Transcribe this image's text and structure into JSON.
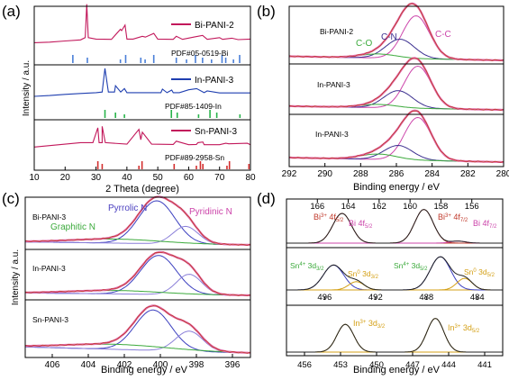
{
  "chart_data": [
    {
      "type": "line",
      "panel": "(a)",
      "xlabel": "2 Theta (degree)",
      "ylabel": "Intensity / a.u.",
      "xlim": [
        10,
        80
      ],
      "xticks": [
        10,
        20,
        30,
        40,
        50,
        60,
        70,
        80
      ],
      "series": [
        {
          "name": "Bi-PANI-2",
          "color": "#c2185b",
          "x": [
            10,
            15,
            20,
            25,
            26.5,
            27,
            27.5,
            30,
            35,
            37.9,
            38.3,
            39.4,
            40,
            42,
            45,
            46,
            48.7,
            50,
            55,
            56,
            58,
            62,
            64.5,
            66,
            70,
            71,
            74,
            76,
            80
          ],
          "y": [
            0.2,
            0.4,
            0.8,
            1.2,
            2.0,
            14.0,
            2.0,
            1.5,
            1.4,
            5.0,
            4.5,
            6.5,
            1.5,
            1.5,
            2.5,
            2.2,
            3.5,
            1.5,
            1.4,
            2.5,
            1.4,
            2.3,
            2.8,
            1.4,
            2.0,
            1.4,
            1.8,
            1.3,
            1.5
          ]
        },
        {
          "name": "In-PANI-3",
          "color": "#1f3fb0",
          "x": [
            10,
            15,
            20,
            25,
            30,
            32,
            32.9,
            34,
            36,
            36.3,
            38,
            39.2,
            40,
            45,
            51,
            51.5,
            53,
            54.5,
            55,
            57,
            60,
            62.6,
            65,
            66,
            70,
            75,
            80
          ],
          "y": [
            0.3,
            0.6,
            1.0,
            1.3,
            1.6,
            1.8,
            10.0,
            1.8,
            1.8,
            4.0,
            1.8,
            3.0,
            1.6,
            1.6,
            1.6,
            2.8,
            1.6,
            2.5,
            1.6,
            1.6,
            2.6,
            3.0,
            1.6,
            2.2,
            1.5,
            1.5,
            1.5
          ]
        },
        {
          "name": "Sn-PANI-3",
          "color": "#c2185b",
          "x": [
            10,
            15,
            20,
            25,
            29,
            30.6,
            31,
            32,
            32.0,
            33,
            40,
            43.9,
            44.5,
            45,
            48,
            55,
            56,
            60,
            62.5,
            63,
            64.6,
            65,
            70,
            72,
            73,
            79,
            80
          ],
          "y": [
            0.5,
            1.0,
            1.5,
            2.0,
            2.0,
            7.0,
            2.0,
            2.0,
            7.5,
            2.0,
            1.5,
            6.5,
            3.0,
            5.5,
            1.5,
            1.4,
            2.5,
            1.3,
            1.4,
            2.0,
            2.2,
            1.3,
            1.3,
            1.8,
            1.6,
            1.8,
            1.3
          ]
        }
      ],
      "references": [
        {
          "label": "PDF#05-0519-Bi",
          "color": "#4a7fd8",
          "positions": [
            22.5,
            27.2,
            37.9,
            39.6,
            44.5,
            45.9,
            48.7,
            56.0,
            59.3,
            62.2,
            64.5,
            67.4,
            70.8,
            72.0,
            74.5,
            76.5
          ]
        },
        {
          "label": "PDF#85-1409-In",
          "color": "#28b34a",
          "positions": [
            32.9,
            36.3,
            39.2,
            54.4,
            56.3,
            63.2,
            66.9,
            69.1,
            76.6
          ]
        },
        {
          "label": "PDF#89-2958-Sn",
          "color": "#d32f2f",
          "positions": [
            30.6,
            32.0,
            43.9,
            44.9,
            55.3,
            62.5,
            63.8,
            64.6,
            72.4,
            73.2,
            79.5
          ]
        }
      ]
    },
    {
      "type": "line",
      "panel": "(b)",
      "xlabel": "Binding energy / eV",
      "ylabel": "",
      "xlim": [
        292,
        280
      ],
      "xticks": [
        292,
        290,
        288,
        286,
        284,
        282,
        280
      ],
      "subpanels": [
        {
          "label": "Bi-PANI-2",
          "annotations": [
            {
              "text": "C-O",
              "color": "#3caa3c",
              "x": 286.9
            },
            {
              "text": "C-N",
              "color": "#3b2f8f",
              "x": 285.8
            },
            {
              "text": "C-C",
              "color": "#cc44aa",
              "x": 284.2
            }
          ],
          "peaks": [
            {
              "center": 284.9,
              "height": 0.85,
              "width": 0.75,
              "role": "C-C"
            },
            {
              "center": 285.8,
              "height": 0.38,
              "width": 0.8,
              "role": "C-N"
            },
            {
              "center": 287.0,
              "height": 0.08,
              "width": 1.0,
              "role": "C-O"
            }
          ]
        },
        {
          "label": "In-PANI-3",
          "peaks": [
            {
              "center": 284.8,
              "height": 0.9,
              "width": 0.75,
              "role": "C-C"
            },
            {
              "center": 285.9,
              "height": 0.37,
              "width": 0.8,
              "role": "C-N"
            },
            {
              "center": 287.0,
              "height": 0.07,
              "width": 1.0,
              "role": "C-O"
            }
          ]
        },
        {
          "label": "In-PANI-3",
          "peaks": [
            {
              "center": 284.8,
              "height": 0.95,
              "width": 0.75,
              "role": "C-C"
            },
            {
              "center": 285.9,
              "height": 0.32,
              "width": 0.8,
              "role": "C-N"
            },
            {
              "center": 287.0,
              "height": 0.12,
              "width": 1.0,
              "role": "C-O"
            }
          ]
        }
      ]
    },
    {
      "type": "line",
      "panel": "(c)",
      "xlabel": "Binding energy / eV",
      "ylabel": "Intensity / a.u.",
      "xlim": [
        407.5,
        395
      ],
      "xticks": [
        406,
        404,
        402,
        400,
        398,
        396
      ],
      "subpanels": [
        {
          "label": "Bi-PANI-3",
          "annotations": [
            {
              "text": "Pyrrolic N",
              "color": "#4a3fbf",
              "x": 401.2
            },
            {
              "text": "Pyridinic N",
              "color": "#cc44aa",
              "x": 397.8
            },
            {
              "text": "Graphitic N",
              "color": "#3caa3c",
              "x": 404.3
            }
          ],
          "peaks": [
            {
              "center": 400.2,
              "height": 0.85,
              "width": 1.0,
              "role": "pyrrolic"
            },
            {
              "center": 398.6,
              "height": 0.35,
              "width": 0.7,
              "role": "pyridinic"
            },
            {
              "center": 402.5,
              "height": 0.08,
              "width": 2.5,
              "role": "graphitic"
            }
          ]
        },
        {
          "label": "In-PANI-3",
          "peaks": [
            {
              "center": 400.1,
              "height": 0.8,
              "width": 1.0,
              "role": "pyrrolic"
            },
            {
              "center": 398.4,
              "height": 0.42,
              "width": 0.7,
              "role": "pyridinic"
            },
            {
              "center": 402.5,
              "height": 0.07,
              "width": 2.5,
              "role": "graphitic"
            }
          ]
        },
        {
          "label": "Sn-PANI-3",
          "peaks": [
            {
              "center": 400.4,
              "height": 0.8,
              "width": 1.0,
              "role": "pyrrolic"
            },
            {
              "center": 398.4,
              "height": 0.4,
              "width": 0.75,
              "role": "pyridinic"
            },
            {
              "center": 402.5,
              "height": 0.1,
              "width": 2.8,
              "role": "graphitic"
            }
          ]
        }
      ]
    },
    {
      "type": "line",
      "panel": "(d)",
      "xlabel": "Binding energy / eV",
      "subpanels": [
        {
          "xlim": [
            168,
            154
          ],
          "xticks": [
            166,
            164,
            162,
            160,
            158,
            156
          ],
          "xtick_position": "top",
          "annotations": [
            {
              "text": "Bi³⁺ 4f₅/₂",
              "color": "#c0392b",
              "x": 164.0
            },
            {
              "text": "Bi 4f₅/₂",
              "color": "#cc44aa",
              "x": 162.3
            },
            {
              "text": "Bi³⁺ 4f₇/₂",
              "color": "#c0392b",
              "x": 158.2
            },
            {
              "text": "Bi 4f₇/₂",
              "color": "#cc44aa",
              "x": 156.0
            }
          ],
          "peaks": [
            {
              "center": 164.4,
              "height": 0.75,
              "width": 0.6
            },
            {
              "center": 159.1,
              "height": 0.85,
              "width": 0.6
            },
            {
              "center": 156.9,
              "height": 0.05,
              "width": 0.5
            }
          ]
        },
        {
          "xlim": [
            499,
            482
          ],
          "xticks": [
            496,
            492,
            488,
            484
          ],
          "xtick_position": "bottom",
          "annotations": [
            {
              "text": "Sn⁴⁺ 3d₃/₂",
              "color": "#3caa3c",
              "x": 497.5
            },
            {
              "text": "Sn⁰ 3d₃/₂",
              "color": "#d4a017",
              "x": 493.5
            },
            {
              "text": "Sn⁴⁺ 3d₅/₂",
              "color": "#3caa3c",
              "x": 489.3
            },
            {
              "text": "Sn⁰ 3d₅/₂",
              "color": "#d4a017",
              "x": 484.5
            }
          ],
          "peaks": [
            {
              "center": 495.3,
              "height": 0.6,
              "width": 0.8
            },
            {
              "center": 493.5,
              "height": 0.2,
              "width": 0.6
            },
            {
              "center": 486.9,
              "height": 0.8,
              "width": 0.8
            },
            {
              "center": 485.0,
              "height": 0.28,
              "width": 0.6
            }
          ]
        },
        {
          "xlim": [
            457.5,
            439.5
          ],
          "xticks": [
            456,
            453,
            450,
            447,
            444,
            441
          ],
          "xtick_position": "bottom",
          "annotations": [
            {
              "text": "In³⁺ 3d₃/₂",
              "color": "#d4a017",
              "x": 451.0
            },
            {
              "text": "In³⁺ 3d₅/₂",
              "color": "#d4a017",
              "x": 443.5
            }
          ],
          "peaks": [
            {
              "center": 452.6,
              "height": 0.7,
              "width": 0.7
            },
            {
              "center": 445.1,
              "height": 0.85,
              "width": 0.7
            }
          ]
        }
      ]
    }
  ],
  "labels": {
    "a": "(a)",
    "b": "(b)",
    "c": "(c)",
    "d": "(d)",
    "a_legend": [
      "Bi-PANI-2",
      "In-PANI-3",
      "Sn-PANI-3"
    ],
    "a_ref": [
      "PDF#05-0519-Bi",
      "PDF#85-1409-In",
      "PDF#89-2958-Sn"
    ],
    "a_xlabel": "2 Theta (degree)",
    "a_ylabel": "Intensity / a.u.",
    "b_samples": [
      "Bi-PANI-2",
      "In-PANI-3",
      "In-PANI-3"
    ],
    "b_co": "C-O",
    "b_cn": "C-N",
    "b_cc": "C-C",
    "b_xlabel": "Binding energy / eV",
    "c_samples": [
      "Bi-PANI-3",
      "In-PANI-3",
      "Sn-PANI-3"
    ],
    "c_pyrrolic": "Pyrrolic N",
    "c_pyridinic": "Pyridinic N",
    "c_graphitic": "Graphitic N",
    "c_xlabel": "Binding energy / eV",
    "c_ylabel": "Intensity / a.u.",
    "d_xlabel": "Binding energy / eV"
  }
}
